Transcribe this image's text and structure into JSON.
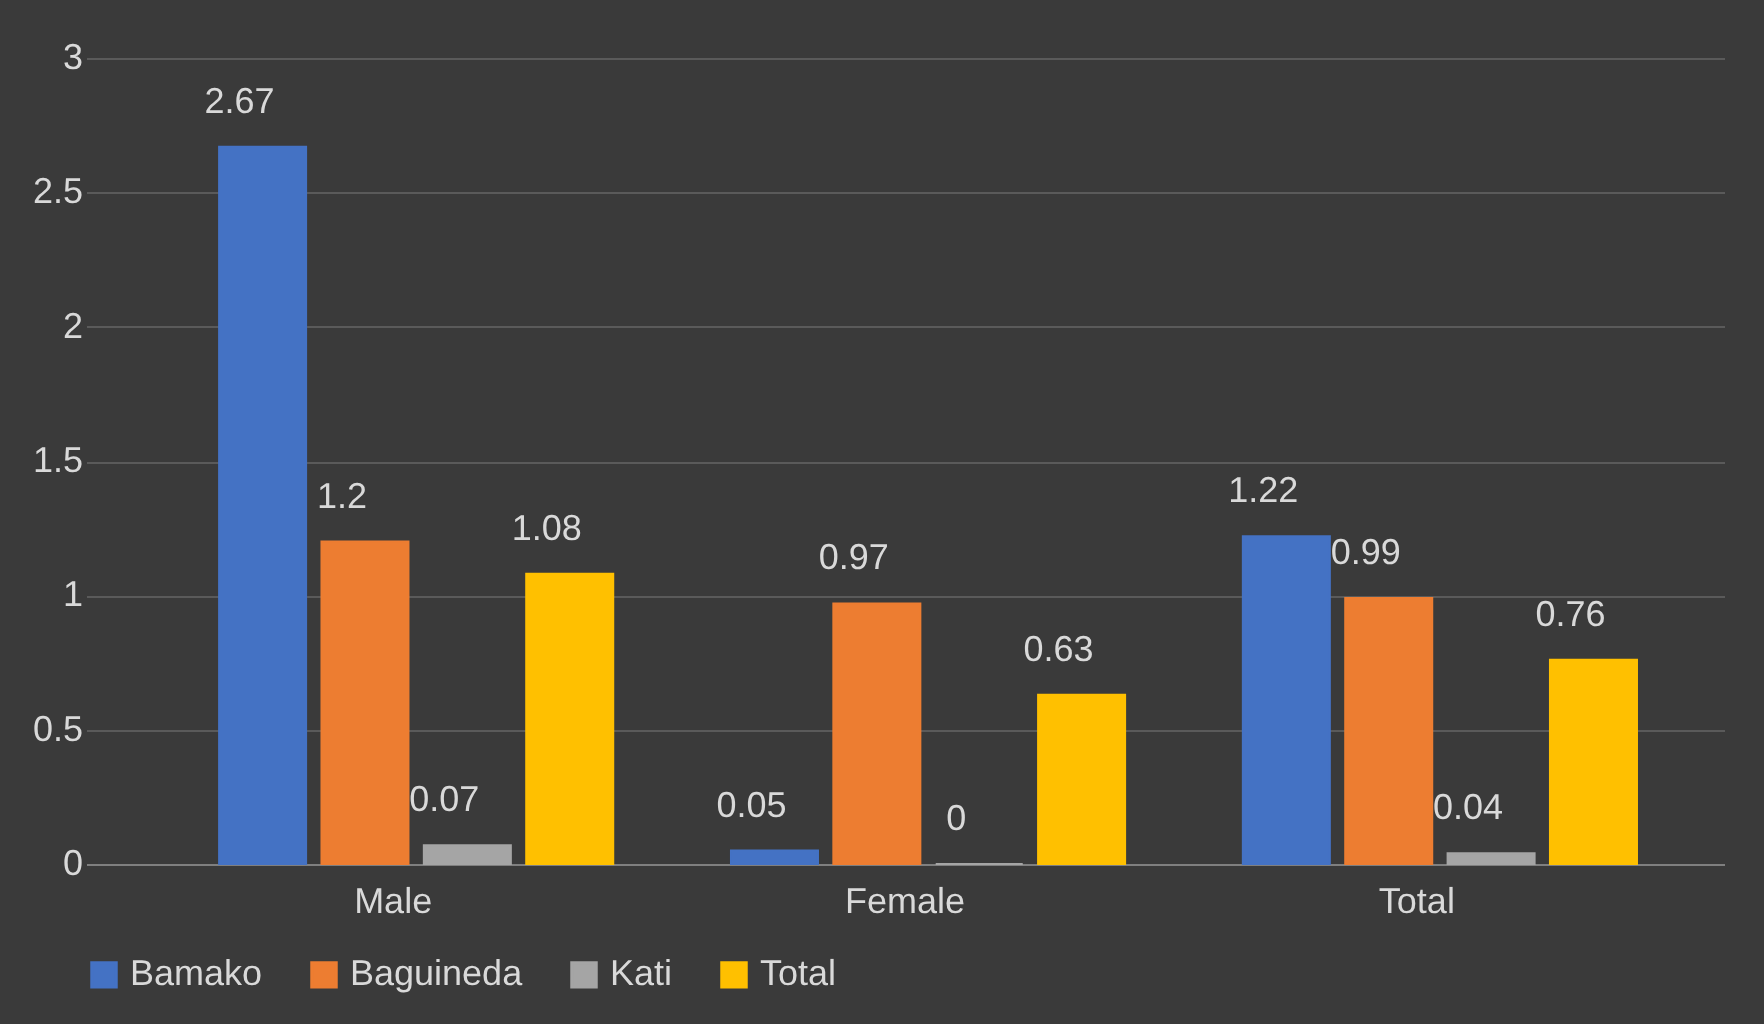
{
  "chart_data": {
    "type": "bar",
    "categories": [
      "Male",
      "Female",
      "Total"
    ],
    "series": [
      {
        "name": "Bamako",
        "color": "#4472c4",
        "values": [
          2.67,
          0.05,
          1.22
        ]
      },
      {
        "name": "Baguineda",
        "color": "#ed7d31",
        "values": [
          1.2,
          0.97,
          0.99
        ]
      },
      {
        "name": "Kati",
        "color": "#a5a5a5",
        "values": [
          0.07,
          0,
          0.04
        ]
      },
      {
        "name": "Total",
        "color": "#ffc000",
        "values": [
          1.08,
          0.63,
          0.76
        ]
      }
    ],
    "ylim": [
      0,
      3
    ],
    "yticks": [
      0,
      0.5,
      1,
      1.5,
      2,
      2.5,
      3
    ],
    "grid": "y",
    "legend": "bottom",
    "data_labels": true
  }
}
